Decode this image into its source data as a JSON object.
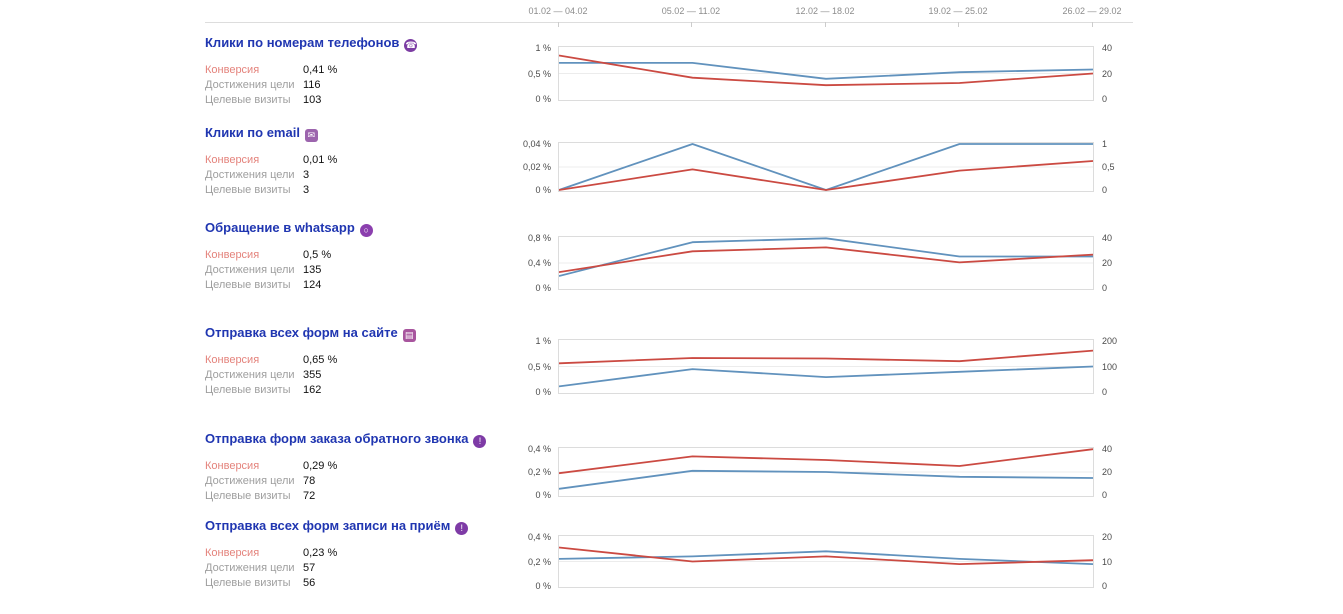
{
  "colors": {
    "title_link": "#2036b1",
    "conversion_label": "#e4837c",
    "muted_label": "#9e9e9e",
    "line_blue": "#6192bd",
    "line_red": "#cb4a42"
  },
  "dates": [
    "01.02 — 04.02",
    "05.02 — 11.02",
    "12.02 — 18.02",
    "19.02 — 25.02",
    "26.02 — 29.02"
  ],
  "stat_labels": {
    "conversion": "Конверсия",
    "goal_reaches": "Достижения цели",
    "target_visits": "Целевые визиты"
  },
  "sections": [
    {
      "title": "Клики по номерам телефонов",
      "icon_glyph": "☎",
      "icon_color": "#7c3da3",
      "icon_shape": "circle",
      "conversion": "0,41 %",
      "goal_reaches": "116",
      "target_visits": "103"
    },
    {
      "title": "Клики по email",
      "icon_glyph": "✉",
      "icon_color": "#9c64ad",
      "icon_shape": "square",
      "conversion": "0,01 %",
      "goal_reaches": "3",
      "target_visits": "3"
    },
    {
      "title": "Обращение в whatsapp",
      "icon_glyph": "○",
      "icon_color": "#8b3fae",
      "icon_shape": "circle",
      "conversion": "0,5 %",
      "goal_reaches": "135",
      "target_visits": "124"
    },
    {
      "title": "Отправка всех форм на сайте",
      "icon_glyph": "▤",
      "icon_color": "#a8559e",
      "icon_shape": "square",
      "conversion": "0,65 %",
      "goal_reaches": "355",
      "target_visits": "162"
    },
    {
      "title": "Отправка форм заказа обратного звонка",
      "icon_glyph": "!",
      "icon_color": "#7e3ba6",
      "icon_shape": "circle",
      "conversion": "0,29 %",
      "goal_reaches": "78",
      "target_visits": "72"
    },
    {
      "title": "Отправка всех форм записи на приём",
      "icon_glyph": "!",
      "icon_color": "#7e3ba6",
      "icon_shape": "circle",
      "conversion": "0,23 %",
      "goal_reaches": "57",
      "target_visits": "56"
    }
  ],
  "chart_data": [
    {
      "type": "line",
      "title": "Клики по номерам телефонов",
      "x_categories": [
        "01.02 — 04.02",
        "05.02 — 11.02",
        "12.02 — 18.02",
        "19.02 — 25.02",
        "26.02 — 29.02"
      ],
      "left_axis": {
        "ticks": [
          "1 %",
          "0,5 %",
          "0 %"
        ],
        "max": 1
      },
      "right_axis": {
        "ticks": [
          "40",
          "20",
          "0"
        ],
        "max": 40
      },
      "grid": true,
      "legend": "none",
      "series": [
        {
          "name": "Достижения цели",
          "axis": "right",
          "color": "#6192bd",
          "values": [
            28,
            28,
            16,
            21,
            23
          ]
        },
        {
          "name": "Конверсия",
          "axis": "left",
          "color": "#cb4a42",
          "values": [
            0.84,
            0.42,
            0.28,
            0.32,
            0.5
          ]
        }
      ]
    },
    {
      "type": "line",
      "title": "Клики по email",
      "x_categories": [
        "01.02 — 04.02",
        "05.02 — 11.02",
        "12.02 — 18.02",
        "19.02 — 25.02",
        "26.02 — 29.02"
      ],
      "left_axis": {
        "ticks": [
          "0,04 %",
          "0,02 %",
          "0 %"
        ],
        "max": 0.04
      },
      "right_axis": {
        "ticks": [
          "1",
          "0,5",
          "0"
        ],
        "max": 1
      },
      "grid": true,
      "legend": "none",
      "series": [
        {
          "name": "Достижения цели",
          "axis": "right",
          "color": "#6192bd",
          "values": [
            0,
            1,
            0,
            1,
            1
          ]
        },
        {
          "name": "Конверсия",
          "axis": "left",
          "color": "#cb4a42",
          "values": [
            0,
            0.018,
            0,
            0.017,
            0.025
          ]
        }
      ]
    },
    {
      "type": "line",
      "title": "Обращение в whatsapp",
      "x_categories": [
        "01.02 — 04.02",
        "05.02 — 11.02",
        "12.02 — 18.02",
        "19.02 — 25.02",
        "26.02 — 29.02"
      ],
      "left_axis": {
        "ticks": [
          "0,8 %",
          "0,4 %",
          "0 %"
        ],
        "max": 0.8
      },
      "right_axis": {
        "ticks": [
          "40",
          "20",
          "0"
        ],
        "max": 40
      },
      "grid": true,
      "legend": "none",
      "series": [
        {
          "name": "Достижения цели",
          "axis": "right",
          "color": "#6192bd",
          "values": [
            10,
            36,
            39,
            25,
            25
          ]
        },
        {
          "name": "Конверсия",
          "axis": "left",
          "color": "#cb4a42",
          "values": [
            0.26,
            0.58,
            0.64,
            0.41,
            0.53
          ]
        }
      ]
    },
    {
      "type": "line",
      "title": "Отправка всех форм на сайте",
      "x_categories": [
        "01.02 — 04.02",
        "05.02 — 11.02",
        "12.02 — 18.02",
        "19.02 — 25.02",
        "26.02 — 29.02"
      ],
      "left_axis": {
        "ticks": [
          "1 %",
          "0,5 %",
          "0 %"
        ],
        "max": 1
      },
      "right_axis": {
        "ticks": [
          "200",
          "100",
          "0"
        ],
        "max": 200
      },
      "grid": true,
      "legend": "none",
      "series": [
        {
          "name": "Достижения цели",
          "axis": "right",
          "color": "#6192bd",
          "values": [
            25,
            90,
            60,
            80,
            100
          ]
        },
        {
          "name": "Конверсия",
          "axis": "left",
          "color": "#cb4a42",
          "values": [
            0.56,
            0.66,
            0.65,
            0.6,
            0.8
          ]
        }
      ]
    },
    {
      "type": "line",
      "title": "Отправка форм заказа обратного звонка",
      "x_categories": [
        "01.02 — 04.02",
        "05.02 — 11.02",
        "12.02 — 18.02",
        "19.02 — 25.02",
        "26.02 — 29.02"
      ],
      "left_axis": {
        "ticks": [
          "0,4 %",
          "0,2 %",
          "0 %"
        ],
        "max": 0.4
      },
      "right_axis": {
        "ticks": [
          "40",
          "20",
          "0"
        ],
        "max": 40
      },
      "grid": true,
      "legend": "none",
      "series": [
        {
          "name": "Достижения цели",
          "axis": "right",
          "color": "#6192bd",
          "values": [
            6,
            21,
            20,
            16,
            15
          ]
        },
        {
          "name": "Конверсия",
          "axis": "left",
          "color": "#cb4a42",
          "values": [
            0.19,
            0.33,
            0.3,
            0.25,
            0.39
          ]
        }
      ]
    },
    {
      "type": "line",
      "title": "Отправка всех форм записи на приём",
      "x_categories": [
        "01.02 — 04.02",
        "05.02 — 11.02",
        "12.02 — 18.02",
        "19.02 — 25.02",
        "26.02 — 29.02"
      ],
      "left_axis": {
        "ticks": [
          "0,4 %",
          "0,2 %",
          "0 %"
        ],
        "max": 0.4
      },
      "right_axis": {
        "ticks": [
          "20",
          "10",
          "0"
        ],
        "max": 20
      },
      "grid": true,
      "legend": "none",
      "series": [
        {
          "name": "Достижения цели",
          "axis": "right",
          "color": "#6192bd",
          "values": [
            11,
            12,
            14,
            11,
            9
          ]
        },
        {
          "name": "Конверсия",
          "axis": "left",
          "color": "#cb4a42",
          "values": [
            0.31,
            0.2,
            0.24,
            0.18,
            0.21
          ]
        }
      ]
    }
  ]
}
